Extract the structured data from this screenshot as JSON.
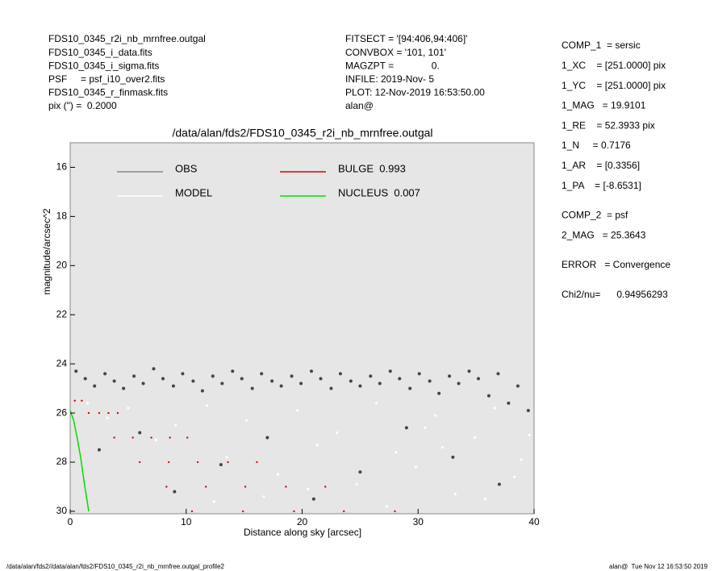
{
  "header": {
    "left": [
      "FDS10_0345_r2i_nb_mrnfree.outgal",
      "FDS10_0345_i_data.fits",
      "FDS10_0345_i_sigma.fits",
      "PSF     = psf_i10_over2.fits",
      "FDS10_0345_r_finmask.fits",
      "pix (\") =  0.2000"
    ],
    "center": [
      "FITSECT = '[94:406,94:406]'",
      "CONVBOX = '101, 101'",
      "MAGZPT =              0.",
      "INFILE: 2019-Nov- 5",
      "PLOT: 12-Nov-2019 16:53:50.00",
      "alan@"
    ],
    "right": [
      [
        "COMP_1  = sersic",
        "1_XC    = [251.0000] pix",
        "1_YC    = [251.0000] pix",
        "1_MAG   = 19.9101",
        "1_RE    = 52.3933 pix",
        "1_N     = 0.7176",
        "1_AR    = [0.3356]",
        "1_PA    = [-8.6531]"
      ],
      [
        "COMP_2  = psf",
        "2_MAG   = 25.3643"
      ],
      [
        "ERROR   = Convergence"
      ],
      [
        "Chi2/nu=      0.94956293"
      ]
    ]
  },
  "footer": {
    "left": "/data/alan/fds2//data/alan/fds2/FDS10_0345_r2i_nb_mrnfree.outgal_profile2",
    "right": "alan@  Tue Nov 12 16:53:50 2019"
  },
  "chart_data": {
    "type": "scatter",
    "title": "/data/alan/fds2/FDS10_0345_r2i_nb_mrnfree.outgal",
    "x_label": "Distance along sky [arcsec]",
    "y_label": "magnitude/arcsec^2",
    "xlim": [
      0,
      40
    ],
    "xticks": [
      0,
      10,
      20,
      30,
      40
    ],
    "ylim": [
      15,
      30.1
    ],
    "yticks": [
      16,
      18,
      20,
      22,
      24,
      26,
      28,
      30
    ],
    "y_inverted": true,
    "background": "#e6e6e6",
    "series": [
      {
        "name": "OBS",
        "color": "#444444",
        "legend_color": "#888888",
        "style": "points",
        "x": [
          0.5,
          1.3,
          2.1,
          3.0,
          3.8,
          4.6,
          5.5,
          6.3,
          7.2,
          8.0,
          8.9,
          9.7,
          10.6,
          11.4,
          12.3,
          13.1,
          14.0,
          14.8,
          15.7,
          16.5,
          17.4,
          18.2,
          19.1,
          19.9,
          20.8,
          21.6,
          22.5,
          23.3,
          24.2,
          25.0,
          25.9,
          26.7,
          27.6,
          28.4,
          29.3,
          30.1,
          31.0,
          31.8,
          32.7,
          33.5,
          34.4,
          35.2,
          36.1,
          36.9,
          37.8,
          38.6,
          39.5,
          2.5,
          6,
          9,
          13,
          17,
          21,
          25,
          29,
          33,
          37
        ],
        "values": [
          24.3,
          24.6,
          24.9,
          24.4,
          24.7,
          25.0,
          24.5,
          24.8,
          24.2,
          24.6,
          24.9,
          24.4,
          24.7,
          25.1,
          24.5,
          24.8,
          24.3,
          24.6,
          25.0,
          24.4,
          24.7,
          24.9,
          24.5,
          24.8,
          24.3,
          24.6,
          25.0,
          24.4,
          24.7,
          24.9,
          24.5,
          24.8,
          24.3,
          24.6,
          25.0,
          24.4,
          24.7,
          25.2,
          24.5,
          24.8,
          24.3,
          24.6,
          25.3,
          24.4,
          25.6,
          24.9,
          25.9,
          27.5,
          26.8,
          29.2,
          28.1,
          27.0,
          29.5,
          28.4,
          26.6,
          27.8,
          28.9
        ]
      },
      {
        "name": "MODEL",
        "color": "#ffffff",
        "legend_color": "#ffffff",
        "style": "points",
        "x": [
          1.5,
          3.2,
          5.0,
          7.4,
          9.1,
          11.8,
          13.5,
          15.2,
          17.9,
          19.6,
          21.3,
          23.0,
          24.7,
          26.4,
          28.1,
          29.8,
          31.5,
          33.2,
          34.9,
          36.6,
          38.3,
          39.6,
          12.4,
          20.5,
          27.3,
          32.1,
          35.8,
          38.9,
          16.7,
          30.6
        ],
        "values": [
          25.6,
          26.2,
          25.8,
          27.1,
          26.5,
          25.7,
          27.8,
          26.3,
          28.5,
          25.9,
          27.3,
          26.8,
          28.9,
          25.6,
          27.6,
          28.2,
          26.1,
          29.3,
          27.0,
          25.8,
          28.6,
          26.9,
          29.6,
          29.1,
          29.8,
          27.4,
          29.5,
          27.9,
          29.4,
          26.6
        ]
      },
      {
        "name": "BULGE  0.993",
        "color": "#e00000",
        "legend_color": "#e00000",
        "style": "points",
        "x": [
          0.4,
          1.0,
          1.6,
          2.5,
          3.3,
          4.1,
          3.8,
          5.4,
          7.0,
          8.6,
          10.1,
          6.0,
          8.5,
          11.0,
          13.6,
          16.1,
          8.3,
          11.7,
          15.1,
          18.6,
          22.0,
          10.5,
          14.9,
          19.3,
          23.6,
          28.0
        ],
        "values": [
          25.5,
          25.5,
          26,
          26,
          26,
          26,
          27,
          27,
          27,
          27,
          27,
          28,
          28,
          28,
          28,
          28,
          29,
          29,
          29,
          29,
          29,
          30,
          30,
          30,
          30,
          30
        ]
      },
      {
        "name": "NUCLEUS  0.007",
        "color": "#00dd00",
        "legend_color": "#00dd00",
        "style": "line",
        "x": [
          0,
          0.3,
          0.6,
          0.9,
          1.2,
          1.6
        ],
        "values": [
          25.9,
          26.3,
          27.0,
          27.8,
          28.8,
          30
        ]
      }
    ]
  }
}
